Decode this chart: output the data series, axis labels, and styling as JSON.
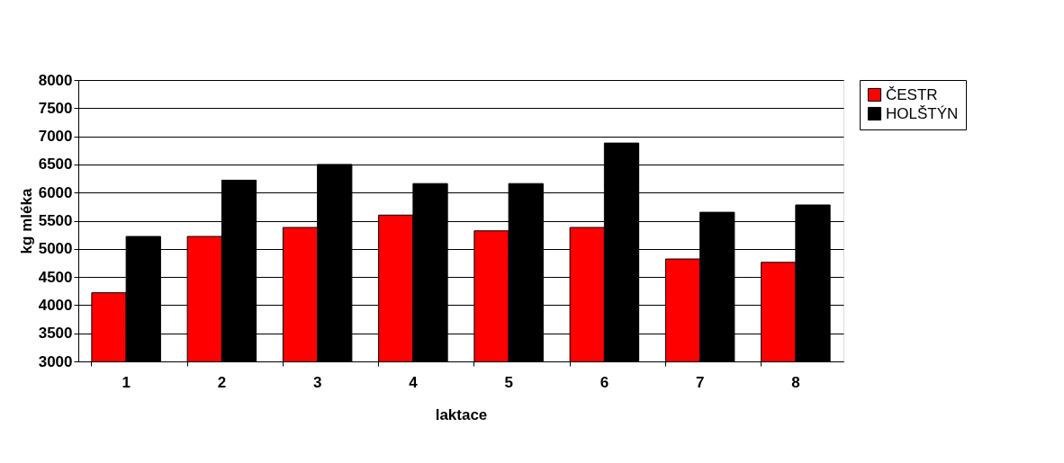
{
  "chart_data": {
    "type": "bar",
    "xlabel": "laktace",
    "ylabel": "kg mléka",
    "categories": [
      "1",
      "2",
      "3",
      "4",
      "5",
      "6",
      "7",
      "8"
    ],
    "series": [
      {
        "name": "ČESTR",
        "color": "#ff0000",
        "values": [
          4220,
          5220,
          5380,
          5600,
          5320,
          5380,
          4820,
          4760
        ]
      },
      {
        "name": "HOLŠTÝN",
        "color": "#000000",
        "values": [
          5220,
          6220,
          6500,
          6160,
          6160,
          6880,
          5650,
          5780
        ]
      }
    ],
    "ylim": [
      3000,
      8000
    ],
    "yticks": [
      3000,
      3500,
      4000,
      4500,
      5000,
      5500,
      6000,
      6500,
      7000,
      7500,
      8000
    ],
    "grid": "y",
    "legend": "right"
  }
}
